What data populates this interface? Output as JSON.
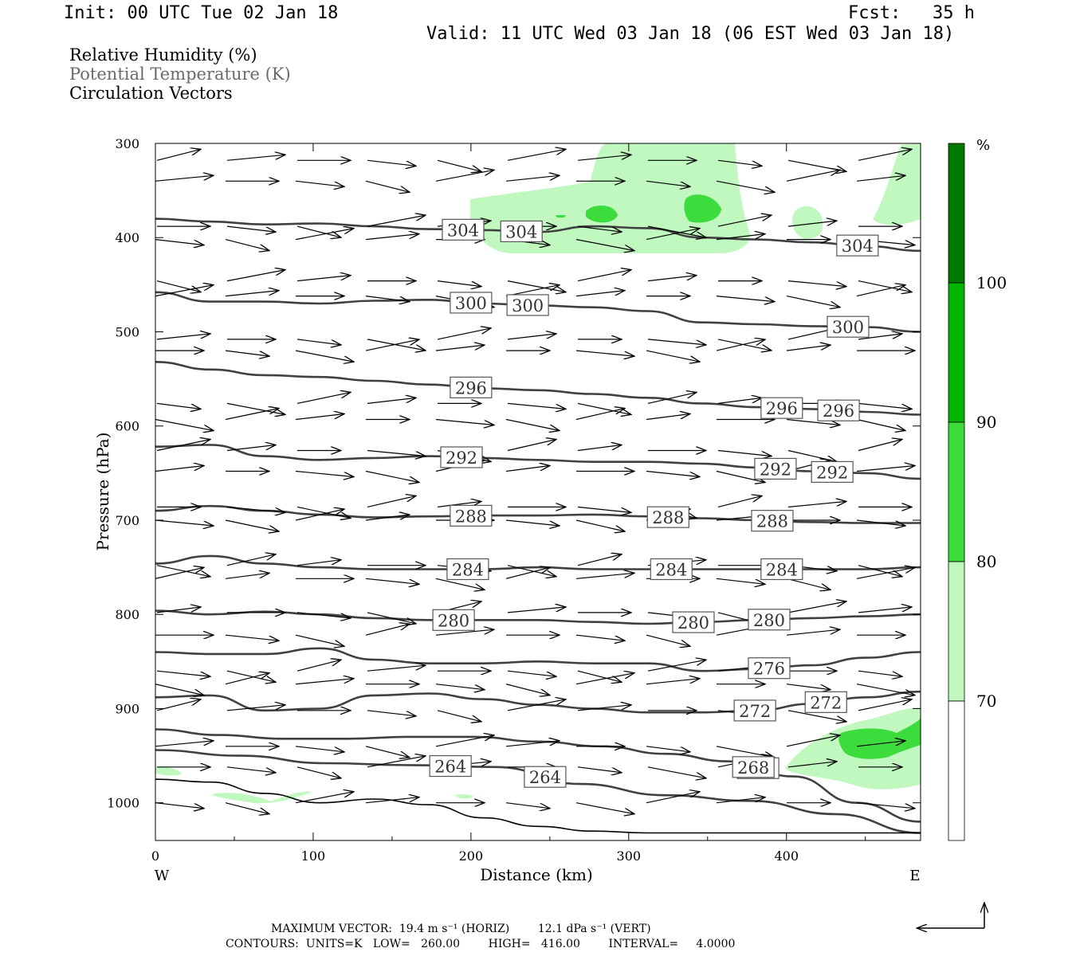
{
  "header": {
    "init": "Init: 00 UTC Tue 02 Jan 18",
    "fcst": "Fcst:   35 h",
    "valid": "Valid: 11 UTC Wed 03 Jan 18 (06 EST Wed 03 Jan 18)"
  },
  "legend": {
    "rh": "Relative Humidity (%)",
    "theta": "Potential Temperature (K)",
    "vectors": "Circulation Vectors"
  },
  "colors": {
    "rh_70_80": "#c0f8c0",
    "rh_80_90": "#3cdc3c",
    "rh_90_100": "#00b400",
    "rh_100": "#007800",
    "contour": "#404040",
    "terrain": "#000000"
  },
  "footer": {
    "line1": "MAXIMUM VECTOR:  19.4 m s⁻¹ (HORIZ)        12.1 dPa s⁻¹ (VERT)",
    "line2": "CONTOURS:  UNITS=K   LOW=   260.00        HIGH=   416.00        INTERVAL=     4.0000"
  },
  "chart_data": {
    "type": "cross-section",
    "xlabel": "Distance (km)",
    "ylabel": "Pressure (hPa)",
    "x_ticks": [
      "0",
      "100",
      "200",
      "300",
      "400"
    ],
    "x_end_labels": {
      "left": "W",
      "right": "E"
    },
    "y_ticks": [
      "300",
      "400",
      "500",
      "600",
      "700",
      "800",
      "900",
      "1000"
    ],
    "xlim": [
      0,
      485
    ],
    "ylim": [
      1040,
      300
    ],
    "colorbar": {
      "unit": "%",
      "labels": [
        "100",
        "90",
        "80",
        "70"
      ],
      "levels": [
        70,
        80,
        90,
        100
      ]
    },
    "theta_contours": [
      {
        "value": 304,
        "p": [
          380,
          383,
          386,
          385,
          388,
          391,
          392,
          394,
          388,
          390,
          400,
          402,
          405,
          409,
          414
        ],
        "labels": [
          "304",
          "304",
          "304"
        ],
        "label_x": [
          195,
          232,
          445
        ]
      },
      {
        "value": 300,
        "p": [
          458,
          468,
          468,
          470,
          467,
          466,
          470,
          472,
          474,
          478,
          490,
          492,
          494,
          495,
          500
        ],
        "labels": [
          "300",
          "300",
          "300"
        ],
        "label_x": [
          200,
          236,
          439
        ]
      },
      {
        "value": 296,
        "p": [
          532,
          540,
          546,
          548,
          552,
          556,
          560,
          562,
          566,
          570,
          576,
          580,
          582,
          585,
          588
        ],
        "labels": [
          "296",
          "296",
          "296"
        ],
        "label_x": [
          200,
          397,
          433
        ]
      },
      {
        "value": 292,
        "p": [
          622,
          620,
          632,
          636,
          634,
          632,
          634,
          636,
          638,
          638,
          640,
          644,
          648,
          650,
          656
        ],
        "labels": [
          "292",
          "292",
          "292"
        ],
        "label_x": [
          194,
          393,
          429
        ]
      },
      {
        "value": 288,
        "p": [
          690,
          685,
          690,
          694,
          697,
          696,
          695,
          695,
          694,
          696,
          698,
          700,
          702,
          703,
          703
        ],
        "labels": [
          "288",
          "288",
          "288"
        ],
        "label_x": [
          200,
          325,
          391
        ]
      },
      {
        "value": 284,
        "p": [
          746,
          738,
          746,
          750,
          752,
          752,
          752,
          750,
          752,
          752,
          752,
          752,
          752,
          752,
          750
        ],
        "labels": [
          "284",
          "284",
          "284"
        ],
        "label_x": [
          198,
          327,
          397
        ]
      },
      {
        "value": 280,
        "p": [
          796,
          800,
          797,
          800,
          804,
          806,
          806,
          806,
          808,
          810,
          808,
          806,
          804,
          802,
          800
        ],
        "labels": [
          "280",
          "280",
          "280"
        ],
        "label_x": [
          189,
          341,
          389
        ]
      },
      {
        "value": 276,
        "p": [
          840,
          842,
          842,
          836,
          848,
          852,
          852,
          850,
          852,
          852,
          860,
          858,
          854,
          846,
          840
        ],
        "labels": [
          "276"
        ],
        "label_x": [
          389
        ]
      },
      {
        "value": 272,
        "p": [
          888,
          886,
          902,
          900,
          886,
          884,
          890,
          896,
          900,
          904,
          904,
          902,
          895,
          888,
          882
        ],
        "labels": [
          "272",
          "272"
        ],
        "label_x": [
          380,
          425
        ]
      },
      {
        "value": 268,
        "p": [
          922,
          928,
          932,
          932,
          930,
          930,
          935,
          940,
          948,
          956,
          972,
          1000,
          1020
        ],
        "labels": [
          "268",
          "268"
        ],
        "label_x": [
          382,
          379
        ]
      },
      {
        "value": 264,
        "p": [
          944,
          950,
          958,
          960,
          962,
          980,
          992,
          998,
          1012,
          1032
        ],
        "labels": [
          "264",
          "264"
        ],
        "label_x": [
          187,
          247
        ]
      }
    ],
    "terrain_p": [
      975,
      978,
      990,
      1000,
      996,
      1002,
      1016,
      1025,
      1030,
      1032,
      1032,
      1032,
      1032,
      1032,
      1032
    ]
  }
}
